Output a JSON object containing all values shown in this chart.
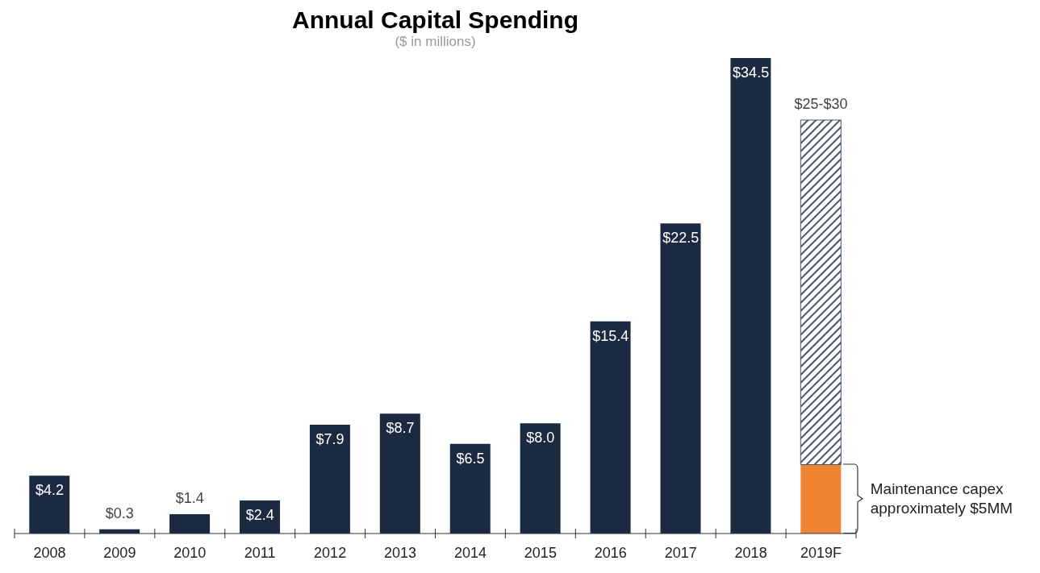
{
  "chart_data": {
    "type": "bar",
    "title": "Annual Capital Spending",
    "subtitle": "($ in millions)",
    "categories": [
      "2008",
      "2009",
      "2010",
      "2011",
      "2012",
      "2013",
      "2014",
      "2015",
      "2016",
      "2017",
      "2018",
      "2019F"
    ],
    "stacked": true,
    "series": [
      {
        "color": "#1b2a41",
        "values": [
          4.2,
          0.3,
          1.4,
          2.4,
          7.9,
          8.7,
          6.5,
          8.0,
          15.4,
          22.5,
          34.5,
          null
        ],
        "value_labels": [
          "$4.2",
          "$0.3",
          "$1.4",
          "$2.4",
          "$7.9",
          "$8.7",
          "$6.5",
          "$8.0",
          "$15.4",
          "$22.5",
          "$34.5",
          null
        ]
      },
      {
        "color": "#ef8432",
        "values": [
          null,
          null,
          null,
          null,
          null,
          null,
          null,
          null,
          null,
          null,
          null,
          5
        ]
      },
      {
        "color": "#44546a",
        "values": [
          null,
          null,
          null,
          null,
          null,
          null,
          null,
          null,
          null,
          null,
          null,
          25
        ],
        "value_labels": [
          null,
          null,
          null,
          null,
          null,
          null,
          null,
          null,
          null,
          null,
          null,
          "$25-$30"
        ]
      }
    ],
    "annotations": [
      "Maintenance capex approximately $5MM"
    ]
  }
}
